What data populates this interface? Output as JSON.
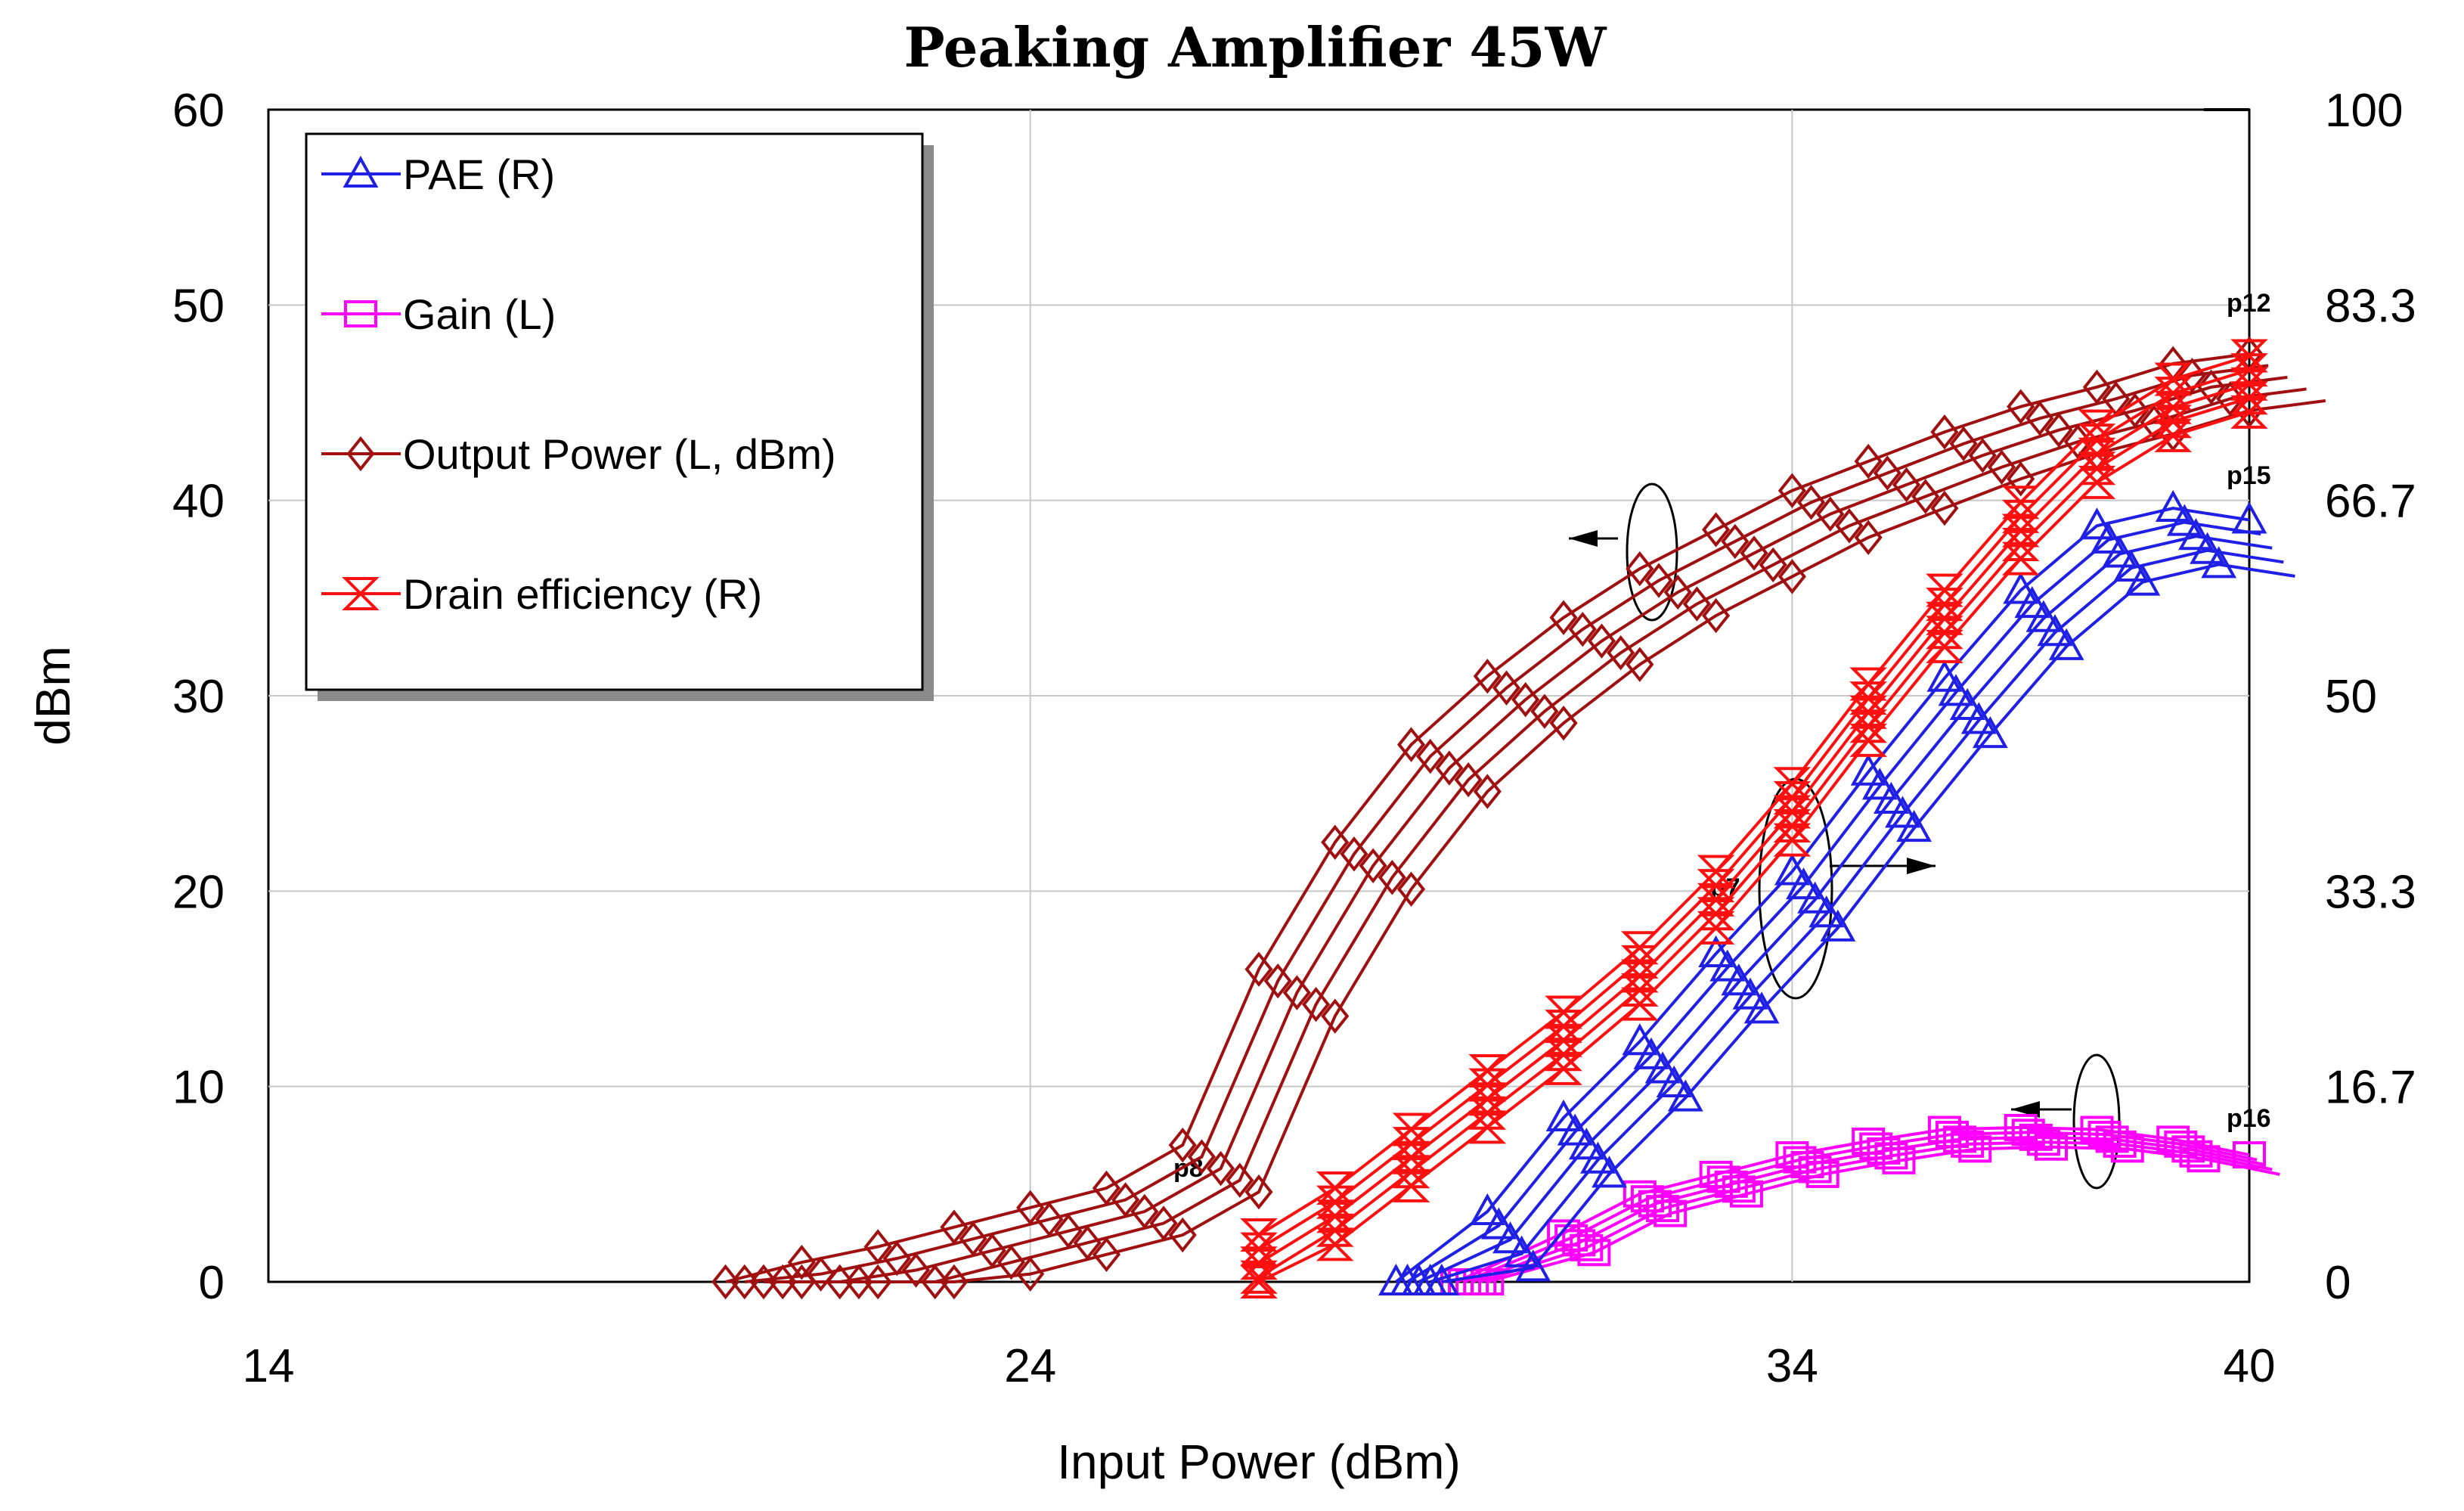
{
  "chart_data": {
    "type": "line",
    "title": "Peaking Amplifier 45W",
    "xlabel": "Input Power (dBm)",
    "ylabel_left": "dBm",
    "ylabel_right": "",
    "xlim": [
      14,
      40
    ],
    "ylim_left": [
      0,
      60
    ],
    "ylim_right": [
      0,
      100
    ],
    "x_ticks": [
      "14",
      "24",
      "34",
      "40"
    ],
    "y_ticks_left": [
      "0",
      "10",
      "20",
      "30",
      "40",
      "50",
      "60"
    ],
    "y_ticks_right": [
      "0",
      "16.7",
      "33.3",
      "50",
      "66.7",
      "83.3",
      "100"
    ],
    "grid": true,
    "legend_position": "top-left",
    "legend": [
      {
        "label": "PAE (R)",
        "color": "#1f1fe6",
        "marker": "triangle"
      },
      {
        "label": "Gain (L)",
        "color": "#ff00ff",
        "marker": "square"
      },
      {
        "label": "Output Power (L, dBm)",
        "color": "#a01010",
        "marker": "diamond"
      },
      {
        "label": "Drain efficiency (R)",
        "color": "#ff1010",
        "marker": "hourglass"
      }
    ],
    "series": [
      {
        "name": "Output Power",
        "axis": "left",
        "color": "#a01010",
        "marker": "diamond",
        "x": [
          20,
          21,
          22,
          23,
          24,
          25,
          26,
          27,
          28,
          29,
          30,
          31,
          32,
          33,
          34,
          35,
          36,
          37,
          38,
          39,
          40
        ],
        "values": [
          0,
          1,
          1.8,
          2.8,
          3.8,
          4.8,
          7,
          16,
          22.5,
          27.5,
          31,
          34,
          36.5,
          38.5,
          40.5,
          42,
          43.5,
          44.8,
          45.8,
          47,
          47.5
        ]
      },
      {
        "name": "Drain efficiency",
        "axis": "right",
        "color": "#ff1010",
        "marker": "hourglass",
        "x": [
          27,
          28,
          29,
          30,
          31,
          32,
          33,
          34,
          35,
          36,
          37,
          38,
          39,
          40
        ],
        "values": [
          4,
          8,
          13,
          18,
          23,
          28.5,
          35,
          42.5,
          51,
          59,
          66.5,
          73,
          77,
          79
        ]
      },
      {
        "name": "PAE",
        "axis": "right",
        "color": "#1f1fe6",
        "marker": "triangle",
        "x": [
          28.8,
          30,
          31,
          32,
          33,
          34,
          35,
          36,
          37,
          38,
          39,
          40
        ],
        "values": [
          0,
          6,
          14,
          20.5,
          28,
          35,
          43.5,
          51.5,
          59,
          64.5,
          66,
          65
        ]
      },
      {
        "name": "Gain",
        "axis": "left",
        "color": "#ff00ff",
        "marker": "square",
        "x": [
          29.6,
          31,
          32,
          33,
          34,
          35,
          36,
          37,
          38,
          39,
          40
        ],
        "values": [
          0,
          2.5,
          4.5,
          5.5,
          6.5,
          7.2,
          7.8,
          7.9,
          7.8,
          7.3,
          6.5
        ]
      }
    ],
    "annotations": [
      "p8",
      "p7",
      "p12",
      "p15",
      "p16"
    ]
  }
}
